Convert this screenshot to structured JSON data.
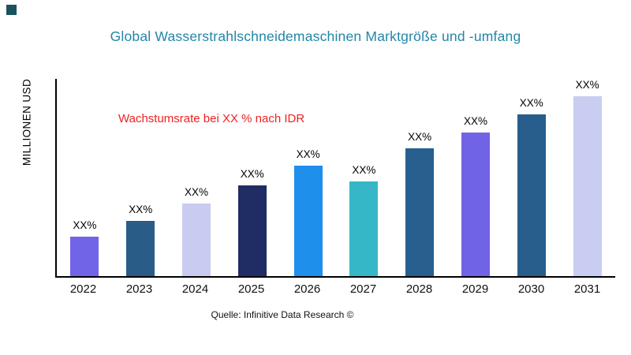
{
  "colors": {
    "title": "#2287a8",
    "annotation": "#ee2222",
    "axis": "#000000",
    "corner_mark": "#19525e"
  },
  "chart_data": {
    "type": "bar",
    "title": "Global Wasserstrahlschneidemaschinen Marktgröße und -umfang",
    "ylabel": "MILLIONEN USD",
    "xlabel": "",
    "annotation": "Wachstumsrate bei XX % nach IDR",
    "source": "Quelle: Infinitive Data Research ©",
    "categories": [
      "2022",
      "2023",
      "2024",
      "2025",
      "2026",
      "2027",
      "2028",
      "2029",
      "2030",
      "2031"
    ],
    "values": [
      20,
      28,
      37,
      46,
      56,
      48,
      65,
      73,
      82,
      92
    ],
    "bar_labels": [
      "XX%",
      "XX%",
      "XX%",
      "XX%",
      "XX%",
      "XX%",
      "XX%",
      "XX%",
      "XX%",
      "XX%"
    ],
    "bar_colors": [
      "#7164e6",
      "#2a5c88",
      "#c9ccf0",
      "#202c64",
      "#1e8feb",
      "#36b7c8",
      "#27608f",
      "#7163e5",
      "#275e8c",
      "#c9cdf2"
    ],
    "ylim": [
      0,
      100
    ],
    "grid": false,
    "legend": "none"
  }
}
